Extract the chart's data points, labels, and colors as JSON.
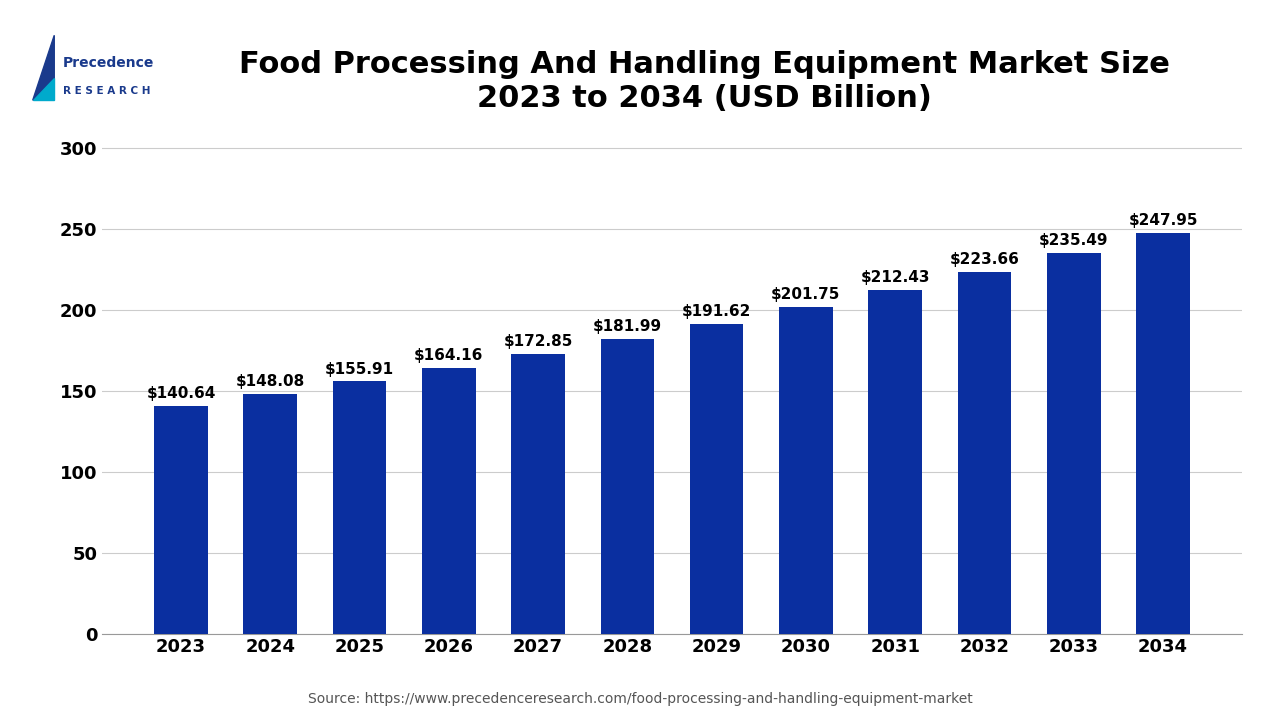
{
  "title": "Food Processing And Handling Equipment Market Size\n2023 to 2034 (USD Billion)",
  "years": [
    2023,
    2024,
    2025,
    2026,
    2027,
    2028,
    2029,
    2030,
    2031,
    2032,
    2033,
    2034
  ],
  "values": [
    140.64,
    148.08,
    155.91,
    164.16,
    172.85,
    181.99,
    191.62,
    201.75,
    212.43,
    223.66,
    235.49,
    247.95
  ],
  "bar_color": "#0a2fa0",
  "ylim": [
    0,
    325
  ],
  "yticks": [
    0,
    50,
    100,
    150,
    200,
    250,
    300
  ],
  "source_text": "Source: https://www.precedenceresearch.com/food-processing-and-handling-equipment-market",
  "background_color": "#ffffff",
  "title_fontsize": 22,
  "tick_fontsize": 13,
  "label_fontsize": 11,
  "source_fontsize": 10,
  "bar_width": 0.6,
  "grid_color": "#cccccc",
  "logo_color_dark": "#1a3a8c",
  "logo_color_teal": "#00aacc"
}
